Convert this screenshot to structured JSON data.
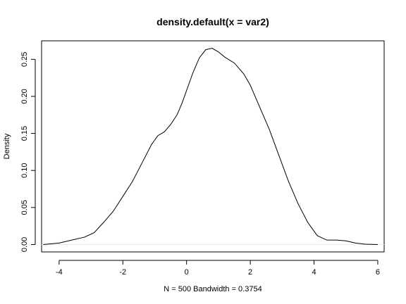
{
  "chart_data": {
    "type": "line",
    "title": "density.default(x = var2)",
    "xlabel": "N = 500   Bandwidth = 0.3754",
    "ylabel": "Density",
    "xlim": [
      -4.55,
      6.2
    ],
    "ylim": [
      -0.01,
      0.275
    ],
    "x_ticks": [
      -4,
      -2,
      0,
      2,
      4,
      6
    ],
    "y_ticks": [
      0.0,
      0.05,
      0.1,
      0.15,
      0.2,
      0.25
    ],
    "x_tick_labels": [
      "-4",
      "-2",
      "0",
      "2",
      "4",
      "6"
    ],
    "y_tick_labels": [
      "0.00",
      "0.05",
      "0.10",
      "0.15",
      "0.20",
      "0.25"
    ],
    "grid": false,
    "line_color": "#000000",
    "series": [
      {
        "x": [
          -4.5,
          -4.0,
          -3.6,
          -3.2,
          -2.9,
          -2.6,
          -2.3,
          -2.0,
          -1.7,
          -1.4,
          -1.1,
          -0.9,
          -0.7,
          -0.5,
          -0.3,
          -0.15,
          0.0,
          0.2,
          0.4,
          0.6,
          0.8,
          1.0,
          1.2,
          1.5,
          1.8,
          2.0,
          2.3,
          2.6,
          2.9,
          3.2,
          3.5,
          3.8,
          4.1,
          4.4,
          4.7,
          5.0,
          5.3,
          5.6,
          6.0
        ],
        "y": [
          0.0,
          0.002,
          0.006,
          0.01,
          0.016,
          0.03,
          0.045,
          0.065,
          0.085,
          0.11,
          0.135,
          0.147,
          0.152,
          0.162,
          0.175,
          0.19,
          0.208,
          0.232,
          0.252,
          0.263,
          0.265,
          0.26,
          0.253,
          0.245,
          0.23,
          0.215,
          0.185,
          0.155,
          0.12,
          0.085,
          0.055,
          0.03,
          0.012,
          0.006,
          0.006,
          0.005,
          0.002,
          0.0005,
          0.0
        ]
      }
    ]
  }
}
